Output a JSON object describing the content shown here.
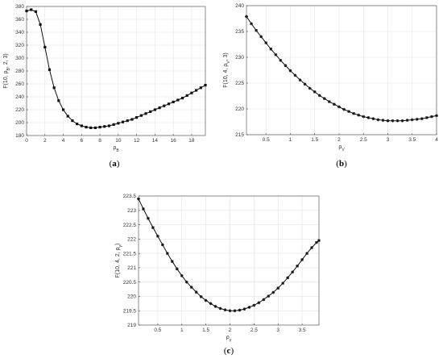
{
  "chart_data": [
    {
      "type": "line",
      "caption_open": "(",
      "caption_letter": "a",
      "caption_close": ")",
      "xlabel": "ρ_B",
      "ylabel": "F(10, ρ_B, 2, 3)",
      "xlim": [
        0,
        19.5
      ],
      "ylim": [
        180,
        380
      ],
      "xticks": [
        0,
        2,
        4,
        6,
        8,
        10,
        12,
        14,
        16,
        18
      ],
      "yticks": [
        180,
        200,
        220,
        240,
        260,
        280,
        300,
        320,
        340,
        360,
        380
      ],
      "grid": true,
      "marker": "filled-square",
      "series": [
        {
          "x": [
            0,
            0.5,
            1,
            1.5,
            2,
            2.5,
            3,
            3.5,
            4,
            4.5,
            5,
            5.5,
            6,
            6.5,
            7,
            7.5,
            8,
            8.5,
            9,
            9.5,
            10,
            10.5,
            11,
            11.5,
            12,
            12.5,
            13,
            13.5,
            14,
            14.5,
            15,
            15.5,
            16,
            16.5,
            17,
            17.5,
            18,
            18.5,
            19,
            19.5
          ],
          "y": [
            373,
            375,
            372,
            352,
            317,
            282,
            254,
            234,
            220,
            210,
            203,
            198,
            195,
            193,
            192,
            192,
            193,
            194,
            195,
            197,
            199,
            201,
            203,
            205,
            208,
            211,
            214,
            217,
            220,
            223,
            226,
            229,
            232,
            235,
            238,
            242,
            246,
            250,
            254,
            258
          ]
        }
      ]
    },
    {
      "type": "line",
      "caption_open": "(",
      "caption_letter": "b",
      "caption_close": ")",
      "xlabel": "ρ_V",
      "ylabel": "F(10, 4, ρ_V, 3)",
      "xlim": [
        0.1,
        4
      ],
      "ylim": [
        215,
        240
      ],
      "xticks": [
        0.5,
        1,
        1.5,
        2,
        2.5,
        3,
        3.5,
        4
      ],
      "yticks": [
        215,
        220,
        225,
        230,
        235,
        240
      ],
      "grid": true,
      "marker": "asterisk",
      "series": [
        {
          "x": [
            0.1,
            0.2,
            0.3,
            0.4,
            0.5,
            0.6,
            0.7,
            0.8,
            0.9,
            1.0,
            1.1,
            1.2,
            1.3,
            1.4,
            1.5,
            1.6,
            1.7,
            1.8,
            1.9,
            2.0,
            2.1,
            2.2,
            2.3,
            2.4,
            2.5,
            2.6,
            2.7,
            2.8,
            2.9,
            3.0,
            3.1,
            3.2,
            3.3,
            3.4,
            3.5,
            3.6,
            3.7,
            3.8,
            3.9,
            4.0
          ],
          "y": [
            237.9,
            236.5,
            235.2,
            234.0,
            232.8,
            231.6,
            230.5,
            229.4,
            228.4,
            227.4,
            226.5,
            225.6,
            224.8,
            224.0,
            223.3,
            222.6,
            222.0,
            221.4,
            220.9,
            220.4,
            219.9,
            219.5,
            219.1,
            218.8,
            218.5,
            218.3,
            218.1,
            217.9,
            217.8,
            217.7,
            217.7,
            217.7,
            217.7,
            217.8,
            217.9,
            218.0,
            218.1,
            218.3,
            218.5,
            218.7
          ]
        }
      ]
    },
    {
      "type": "line",
      "caption_open": "(",
      "caption_letter": "c",
      "caption_close": ")",
      "xlabel": "ρ_γ",
      "ylabel": "F(10, 4, 2, ρ_γ)",
      "xlim": [
        0.1,
        3.85
      ],
      "ylim": [
        219,
        223.5
      ],
      "xticks": [
        0.5,
        1,
        1.5,
        2,
        2.5,
        3,
        3.5
      ],
      "yticks": [
        219,
        219.5,
        220,
        220.5,
        221,
        221.5,
        222,
        222.5,
        223,
        223.5
      ],
      "grid": true,
      "marker": "asterisk",
      "series": [
        {
          "x": [
            0.1,
            0.2,
            0.3,
            0.4,
            0.5,
            0.6,
            0.7,
            0.8,
            0.9,
            1.0,
            1.1,
            1.2,
            1.3,
            1.4,
            1.5,
            1.6,
            1.7,
            1.8,
            1.9,
            2.0,
            2.1,
            2.2,
            2.3,
            2.4,
            2.5,
            2.6,
            2.7,
            2.8,
            2.9,
            3.0,
            3.1,
            3.2,
            3.3,
            3.4,
            3.5,
            3.6,
            3.7,
            3.8,
            3.85
          ],
          "y": [
            223.4,
            223.05,
            222.72,
            222.4,
            222.1,
            221.8,
            221.5,
            221.22,
            220.96,
            220.72,
            220.5,
            220.32,
            220.15,
            219.99,
            219.86,
            219.75,
            219.65,
            219.58,
            219.53,
            219.5,
            219.5,
            219.52,
            219.56,
            219.62,
            219.69,
            219.78,
            219.89,
            220.01,
            220.14,
            220.29,
            220.46,
            220.65,
            220.85,
            221.06,
            221.28,
            221.5,
            221.7,
            221.88,
            221.95
          ]
        }
      ]
    }
  ]
}
